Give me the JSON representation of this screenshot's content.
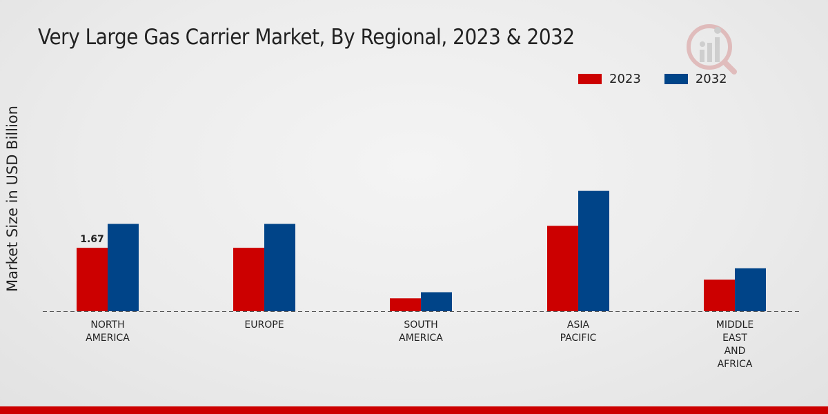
{
  "chart_data": {
    "type": "bar",
    "title": "Very Large Gas Carrier Market, By Regional, 2023 & 2032",
    "xlabel": "",
    "ylabel": "Market Size in USD Billion",
    "ylim": [
      0,
      6
    ],
    "grid": false,
    "legend_position": "top-right",
    "categories": [
      [
        "NORTH",
        "AMERICA"
      ],
      [
        "EUROPE"
      ],
      [
        "SOUTH",
        "AMERICA"
      ],
      [
        "ASIA",
        "PACIFIC"
      ],
      [
        "MIDDLE",
        "EAST",
        "AND",
        "AFRICA"
      ]
    ],
    "series": [
      {
        "name": "2023",
        "color": "#cc0000",
        "values": [
          1.67,
          1.67,
          0.34,
          2.25,
          0.83
        ]
      },
      {
        "name": "2032",
        "color": "#004488",
        "values": [
          2.3,
          2.3,
          0.5,
          3.17,
          1.13
        ]
      }
    ],
    "data_labels": [
      {
        "series": 0,
        "index": 0,
        "text": "1.67"
      }
    ]
  },
  "watermark": "logo-icon"
}
